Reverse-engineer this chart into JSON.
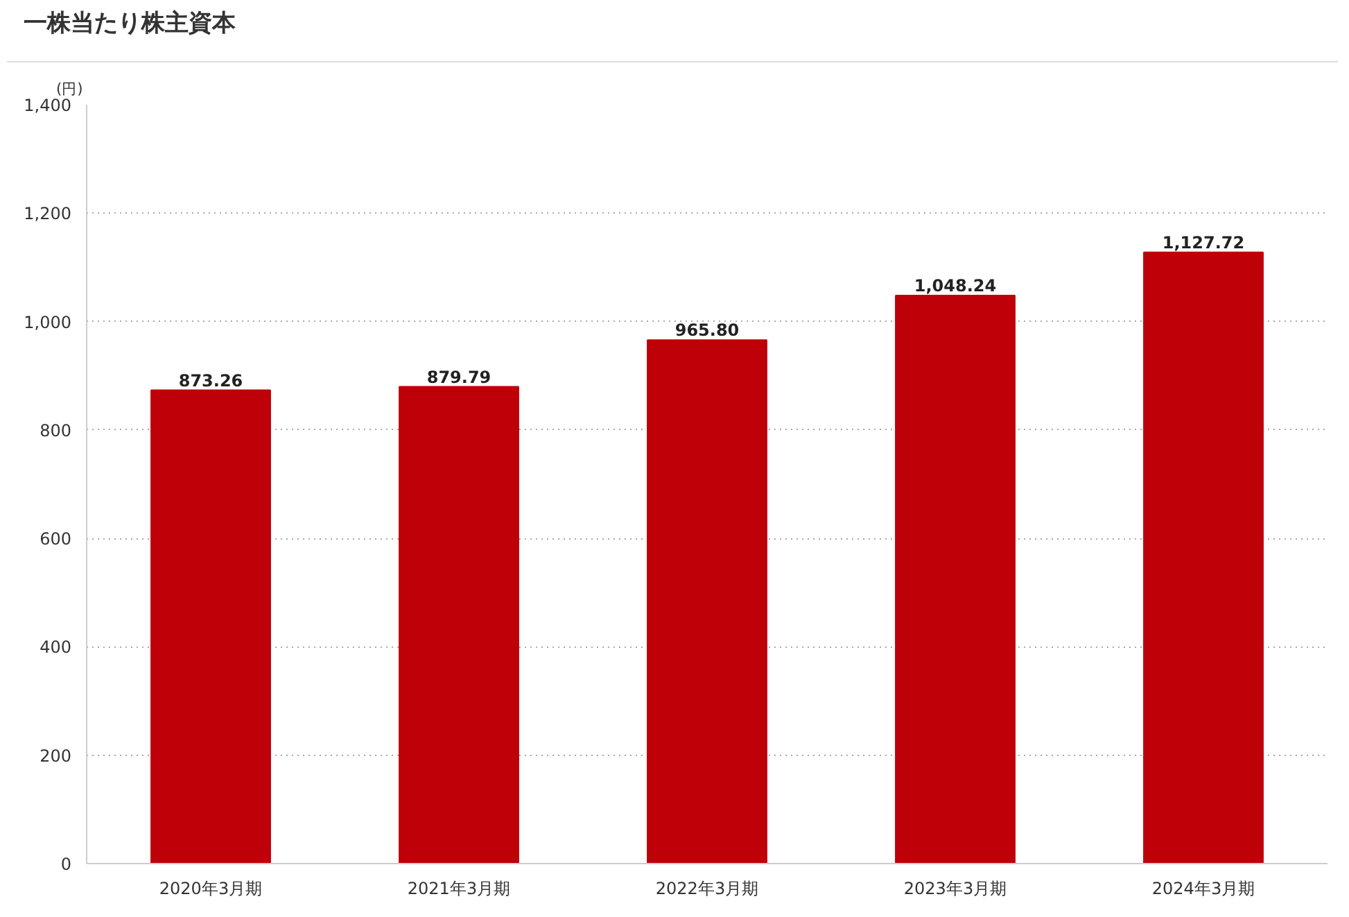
{
  "chart_data": {
    "type": "bar",
    "title": "一株当たり株主資本",
    "ylabel": "(円)",
    "categories": [
      "2020年3月期",
      "2021年3月期",
      "2022年3月期",
      "2023年3月期",
      "2024年3月期"
    ],
    "values": [
      873.26,
      879.79,
      965.8,
      1048.24,
      1127.72
    ],
    "value_labels": [
      "873.26",
      "879.79",
      "965.80",
      "1,048.24",
      "1,127.72"
    ],
    "color": "#be0008",
    "ylim": [
      0,
      1400
    ],
    "yticks": [
      0,
      200,
      400,
      600,
      800,
      {
        "value": 1000,
        "label": "1,000"
      },
      {
        "value": 1200,
        "label": "1,200"
      },
      {
        "value": 1400,
        "label": "1,400"
      }
    ],
    "grid": "y"
  }
}
